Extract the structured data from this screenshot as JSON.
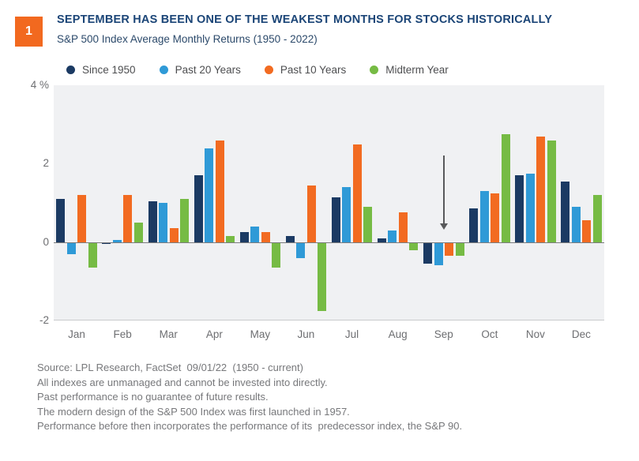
{
  "header": {
    "badge": "1",
    "title": "SEPTEMBER HAS BEEN ONE OF THE WEAKEST MONTHS FOR STOCKS HISTORICALLY",
    "subtitle": "S&P 500 Index Average Monthly Returns (1950 - 2022)"
  },
  "colors": {
    "badge_orange": "#f2691f",
    "title_navy": "#1b4577",
    "subtitle_navy": "#2c4a6b",
    "plot_background": "#f0f1f3",
    "zero_line": "#7b7c7e",
    "axis_text": "#6d6e71",
    "arrow_gray": "#58595b",
    "footer_text": "#77787b"
  },
  "legend": [
    {
      "label": "Since 1950",
      "color": "#1b3a63"
    },
    {
      "label": "Past 20 Years",
      "color": "#2f9ad7"
    },
    {
      "label": "Past 10 Years",
      "color": "#f26b21"
    },
    {
      "label": "Midterm Year",
      "color": "#76bb44"
    }
  ],
  "chart_data": {
    "type": "bar",
    "title": "SEPTEMBER HAS BEEN ONE OF THE WEAKEST MONTHS FOR STOCKS HISTORICALLY",
    "subtitle": "S&P 500 Index Average Monthly Returns (1950 - 2022)",
    "categories": [
      "Jan",
      "Feb",
      "Mar",
      "Apr",
      "May",
      "Jun",
      "Jul",
      "Aug",
      "Sep",
      "Oct",
      "Nov",
      "Dec"
    ],
    "series": [
      {
        "name": "Since 1950",
        "color": "#1b3a63",
        "values": [
          1.1,
          -0.05,
          1.05,
          1.7,
          0.25,
          0.15,
          1.15,
          0.1,
          -0.55,
          0.85,
          1.7,
          1.55
        ]
      },
      {
        "name": "Past 20 Years",
        "color": "#2f9ad7",
        "values": [
          -0.3,
          0.05,
          1.0,
          2.4,
          0.4,
          -0.4,
          1.4,
          0.3,
          -0.6,
          1.3,
          1.75,
          0.9
        ]
      },
      {
        "name": "Past 10 Years",
        "color": "#f26b21",
        "values": [
          1.2,
          1.2,
          0.35,
          2.6,
          0.25,
          1.45,
          2.5,
          0.75,
          -0.35,
          1.25,
          2.7,
          0.55
        ]
      },
      {
        "name": "Midterm Year",
        "color": "#76bb44",
        "values": [
          -0.65,
          0.5,
          1.1,
          0.15,
          -0.65,
          -1.75,
          0.9,
          -0.2,
          -0.35,
          2.75,
          2.6,
          1.2
        ]
      }
    ],
    "ylabel": "",
    "xlabel": "",
    "ylim": [
      -2,
      4
    ],
    "yticks": [
      {
        "value": 4,
        "label": "4 %"
      },
      {
        "value": 2,
        "label": "2"
      },
      {
        "value": 0,
        "label": "0"
      },
      {
        "value": -2,
        "label": "-2"
      }
    ],
    "grid": false,
    "legend_position": "top",
    "annotation": {
      "type": "down-arrow",
      "month": "Sep"
    }
  },
  "footer": {
    "lines": [
      "Source: LPL Research, FactSet  09/01/22  (1950 - current)",
      "All indexes are unmanaged and cannot be invested into directly.",
      "Past performance is no guarantee of future results.",
      "The modern design of the S&P 500 Index was first launched in 1957.",
      "Performance before then incorporates the performance of its  predecessor index, the S&P 90."
    ]
  }
}
